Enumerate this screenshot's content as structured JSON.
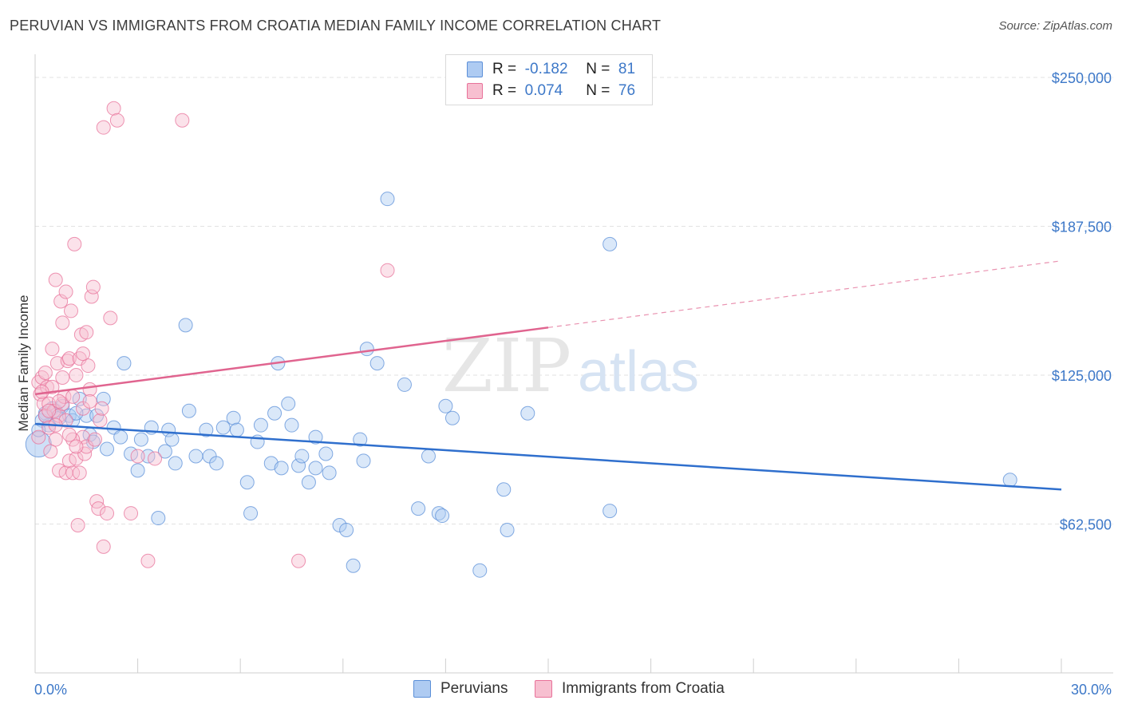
{
  "title": "PERUVIAN VS IMMIGRANTS FROM CROATIA MEDIAN FAMILY INCOME CORRELATION CHART",
  "source": "Source: ZipAtlas.com",
  "watermark": {
    "zip": "ZIP",
    "atlas": "atlas"
  },
  "legend_top": [
    {
      "r_label": "R =",
      "r_value": "-0.182",
      "n_label": "N =",
      "n_value": "81",
      "color": "#a9c6f0"
    },
    {
      "r_label": "R =",
      "r_value": "0.074",
      "n_label": "N =",
      "n_value": "76",
      "color": "#f5b7c9"
    }
  ],
  "chart_data": {
    "type": "scatter",
    "title": "PERUVIAN VS IMMIGRANTS FROM CROATIA MEDIAN FAMILY INCOME CORRELATION CHART",
    "xlabel": "",
    "ylabel": "Median Family Income",
    "xlim": [
      0,
      30
    ],
    "ylim": [
      0,
      260000
    ],
    "x_tick_labels": [
      "0.0%",
      "30.0%"
    ],
    "y_tick_labels": [
      "$62,500",
      "$125,000",
      "$187,500",
      "$250,000"
    ],
    "y_ticks": [
      62500,
      125000,
      187500,
      250000
    ],
    "grid": true,
    "legend_position": "bottom",
    "series": [
      {
        "name": "Peruvians",
        "color": "#5b8fd8",
        "fill": "#aecbf2",
        "trend": {
          "x0": 0,
          "y0": 104500,
          "x1": 30,
          "y1": 77000,
          "solid_to_x": 30
        },
        "points": [
          [
            0.1,
            96000
          ],
          [
            0.2,
            106000
          ],
          [
            0.3,
            109000
          ],
          [
            0.4,
            104000
          ],
          [
            0.5,
            111000
          ],
          [
            0.6,
            110000
          ],
          [
            0.7,
            107000
          ],
          [
            0.8,
            112000
          ],
          [
            1.0,
            108000
          ],
          [
            1.1,
            106000
          ],
          [
            1.3,
            115000
          ],
          [
            1.5,
            108000
          ],
          [
            1.6,
            100000
          ],
          [
            1.7,
            97000
          ],
          [
            1.8,
            108000
          ],
          [
            2.0,
            115000
          ],
          [
            2.1,
            94000
          ],
          [
            2.3,
            103000
          ],
          [
            2.5,
            99000
          ],
          [
            2.6,
            130000
          ],
          [
            2.8,
            92000
          ],
          [
            3.0,
            85000
          ],
          [
            3.1,
            98000
          ],
          [
            3.3,
            91000
          ],
          [
            3.4,
            103000
          ],
          [
            3.6,
            65000
          ],
          [
            3.8,
            93000
          ],
          [
            3.9,
            102000
          ],
          [
            4.0,
            98000
          ],
          [
            4.1,
            88000
          ],
          [
            4.4,
            146000
          ],
          [
            4.5,
            110000
          ],
          [
            4.7,
            91000
          ],
          [
            5.0,
            102000
          ],
          [
            5.1,
            91000
          ],
          [
            5.3,
            88000
          ],
          [
            5.5,
            103000
          ],
          [
            5.8,
            107000
          ],
          [
            5.9,
            102000
          ],
          [
            6.2,
            80000
          ],
          [
            6.3,
            67000
          ],
          [
            6.5,
            97000
          ],
          [
            6.6,
            104000
          ],
          [
            6.9,
            88000
          ],
          [
            7.0,
            109000
          ],
          [
            7.1,
            130000
          ],
          [
            7.2,
            86000
          ],
          [
            7.4,
            113000
          ],
          [
            7.5,
            104000
          ],
          [
            7.7,
            87000
          ],
          [
            7.8,
            91000
          ],
          [
            8.0,
            80000
          ],
          [
            8.2,
            86000
          ],
          [
            8.2,
            99000
          ],
          [
            8.5,
            92000
          ],
          [
            8.6,
            84000
          ],
          [
            8.9,
            62000
          ],
          [
            9.1,
            60000
          ],
          [
            9.3,
            45000
          ],
          [
            9.5,
            98000
          ],
          [
            9.6,
            89000
          ],
          [
            9.7,
            136000
          ],
          [
            10.0,
            130000
          ],
          [
            10.3,
            199000
          ],
          [
            10.8,
            121000
          ],
          [
            11.2,
            69000
          ],
          [
            11.5,
            91000
          ],
          [
            11.8,
            67000
          ],
          [
            11.9,
            66000
          ],
          [
            12.0,
            112000
          ],
          [
            12.2,
            107000
          ],
          [
            13.0,
            43000
          ],
          [
            13.7,
            77000
          ],
          [
            13.8,
            60000
          ],
          [
            14.4,
            109000
          ],
          [
            16.8,
            68000
          ],
          [
            16.8,
            180000
          ],
          [
            28.5,
            81000
          ],
          [
            0.1,
            102000
          ],
          [
            0.3,
            108000
          ],
          [
            1.2,
            109000
          ]
        ]
      },
      {
        "name": "Immigrants from Croatia",
        "color": "#e8729a",
        "fill": "#f7bfd0",
        "trend": {
          "x0": 0,
          "y0": 117000,
          "x1": 30,
          "y1": 173000,
          "solid_to_x": 15
        },
        "points": [
          [
            0.1,
            122000
          ],
          [
            0.1,
            99000
          ],
          [
            0.15,
            117000
          ],
          [
            0.2,
            124000
          ],
          [
            0.25,
            113000
          ],
          [
            0.3,
            108000
          ],
          [
            0.35,
            120000
          ],
          [
            0.4,
            113000
          ],
          [
            0.4,
            103000
          ],
          [
            0.45,
            93000
          ],
          [
            0.5,
            136000
          ],
          [
            0.55,
            110000
          ],
          [
            0.6,
            165000
          ],
          [
            0.6,
            98000
          ],
          [
            0.65,
            130000
          ],
          [
            0.7,
            108000
          ],
          [
            0.7,
            85000
          ],
          [
            0.75,
            156000
          ],
          [
            0.8,
            147000
          ],
          [
            0.8,
            113000
          ],
          [
            0.85,
            116000
          ],
          [
            0.9,
            160000
          ],
          [
            0.9,
            84000
          ],
          [
            0.95,
            131000
          ],
          [
            1.0,
            132000
          ],
          [
            1.0,
            89000
          ],
          [
            1.05,
            152000
          ],
          [
            1.1,
            116000
          ],
          [
            1.1,
            84000
          ],
          [
            1.15,
            180000
          ],
          [
            1.2,
            125000
          ],
          [
            1.2,
            90000
          ],
          [
            1.25,
            62000
          ],
          [
            1.3,
            132000
          ],
          [
            1.3,
            84000
          ],
          [
            1.35,
            142000
          ],
          [
            1.4,
            111000
          ],
          [
            1.4,
            99000
          ],
          [
            1.45,
            92000
          ],
          [
            1.5,
            95000
          ],
          [
            1.5,
            143000
          ],
          [
            1.55,
            129000
          ],
          [
            1.6,
            119000
          ],
          [
            1.6,
            114000
          ],
          [
            1.65,
            158000
          ],
          [
            1.7,
            162000
          ],
          [
            1.75,
            98000
          ],
          [
            1.8,
            72000
          ],
          [
            1.85,
            69000
          ],
          [
            1.9,
            106000
          ],
          [
            1.95,
            111000
          ],
          [
            2.0,
            229000
          ],
          [
            2.0,
            53000
          ],
          [
            2.1,
            67000
          ],
          [
            2.2,
            149000
          ],
          [
            2.3,
            237000
          ],
          [
            2.4,
            232000
          ],
          [
            2.8,
            67000
          ],
          [
            3.0,
            91000
          ],
          [
            3.3,
            47000
          ],
          [
            3.5,
            90000
          ],
          [
            4.3,
            232000
          ],
          [
            7.7,
            47000
          ],
          [
            10.3,
            169000
          ],
          [
            0.3,
            126000
          ],
          [
            0.5,
            120000
          ],
          [
            0.7,
            114000
          ],
          [
            0.9,
            106000
          ],
          [
            1.1,
            98000
          ],
          [
            0.2,
            118000
          ],
          [
            0.4,
            110000
          ],
          [
            0.6,
            104000
          ],
          [
            0.8,
            124000
          ],
          [
            1.0,
            100000
          ],
          [
            1.2,
            95000
          ],
          [
            1.4,
            134000
          ]
        ]
      }
    ]
  },
  "bottom_legend": [
    {
      "label": "Peruvians",
      "color": "#aecbf2",
      "border": "#5b8fd8"
    },
    {
      "label": "Immigrants from Croatia",
      "color": "#f7bfd0",
      "border": "#e8729a"
    }
  ]
}
